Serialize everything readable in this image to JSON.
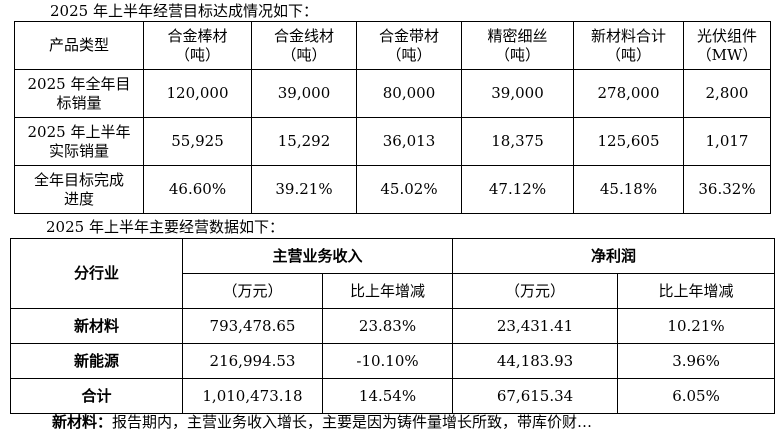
{
  "captions": {
    "first": "2025 年上半年经营目标达成情况如下：",
    "second": "2025 年上半年主要经营数据如下："
  },
  "table1": {
    "headers": [
      {
        "l1": "产品类型",
        "l2": ""
      },
      {
        "l1": "合金棒材",
        "l2": "（吨）"
      },
      {
        "l1": "合金线材",
        "l2": "（吨）"
      },
      {
        "l1": "合金带材",
        "l2": "（吨）"
      },
      {
        "l1": "精密细丝",
        "l2": "（吨）"
      },
      {
        "l1": "新材料合计",
        "l2": "（吨）"
      },
      {
        "l1": "光伏组件",
        "l2": "（MW）"
      }
    ],
    "rows": [
      {
        "label1": "2025 年全年目",
        "label2": "标销量",
        "values": [
          "120,000",
          "39,000",
          "80,000",
          "39,000",
          "278,000",
          "2,800"
        ]
      },
      {
        "label1": "2025 年上半年",
        "label2": "实际销量",
        "values": [
          "55,925",
          "15,292",
          "36,013",
          "18,375",
          "125,605",
          "1,017"
        ]
      },
      {
        "label1": "全年目标完成",
        "label2": "进度",
        "values": [
          "46.60%",
          "39.21%",
          "45.02%",
          "47.12%",
          "45.18%",
          "36.32%"
        ]
      }
    ]
  },
  "table2": {
    "corner": "分行业",
    "group1": "主营业务收入",
    "group2": "净利润",
    "sub": [
      "（万元）",
      "比上年增减",
      "（万元）",
      "比上年增减"
    ],
    "rows": [
      {
        "label": "新材料",
        "values": [
          "793,478.65",
          "23.83%",
          "23,431.41",
          "10.21%"
        ]
      },
      {
        "label": "新能源",
        "values": [
          "216,994.53",
          "-10.10%",
          "44,183.93",
          "3.96%"
        ]
      },
      {
        "label": "合计",
        "values": [
          "1,010,473.18",
          "14.54%",
          "67,615.34",
          "6.05%"
        ]
      }
    ]
  },
  "footer": {
    "bold": "新材料：",
    "rest": "报告期内，主营业务收入增长，主要是因为铸件量增长所致，带库价财…"
  }
}
